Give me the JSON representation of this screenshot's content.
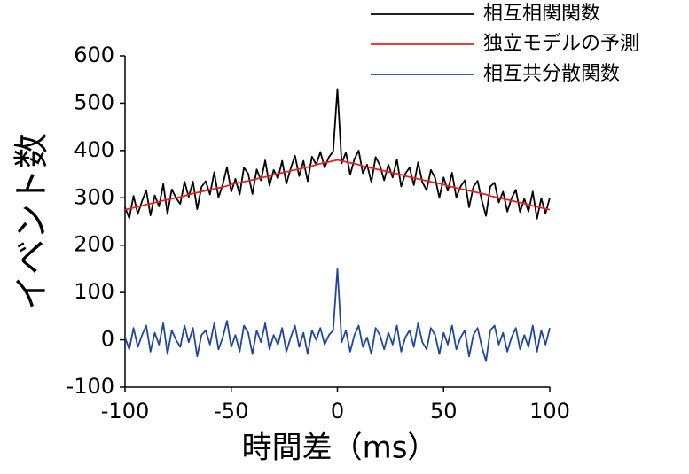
{
  "chart_data": {
    "type": "line",
    "xlabel": "時間差（ms）",
    "ylabel": "イベント数",
    "x": [
      -100,
      -98,
      -96,
      -94,
      -92,
      -90,
      -88,
      -86,
      -84,
      -82,
      -80,
      -78,
      -76,
      -74,
      -72,
      -70,
      -68,
      -66,
      -64,
      -62,
      -60,
      -58,
      -56,
      -54,
      -52,
      -50,
      -48,
      -46,
      -44,
      -42,
      -40,
      -38,
      -36,
      -34,
      -32,
      -30,
      -28,
      -26,
      -24,
      -22,
      -20,
      -18,
      -16,
      -14,
      -12,
      -10,
      -8,
      -6,
      -4,
      -2,
      0,
      2,
      4,
      6,
      8,
      10,
      12,
      14,
      16,
      18,
      20,
      22,
      24,
      26,
      28,
      30,
      32,
      34,
      36,
      38,
      40,
      42,
      44,
      46,
      48,
      50,
      52,
      54,
      56,
      58,
      60,
      62,
      64,
      66,
      68,
      70,
      72,
      74,
      76,
      78,
      80,
      82,
      84,
      86,
      88,
      90,
      92,
      94,
      96,
      98,
      100
    ],
    "series": [
      {
        "name": "相互相関関数",
        "color": "#000000",
        "values": [
          280,
          257,
          304,
          266,
          293,
          316,
          263,
          305,
          282,
          329,
          266,
          318,
          300,
          287,
          334,
          302,
          334,
          276,
          323,
          335,
          307,
          354,
          301,
          328,
          365,
          313,
          340,
          307,
          364,
          351,
          308,
          360,
          337,
          379,
          326,
          359,
          341,
          378,
          330,
          362,
          389,
          346,
          378,
          335,
          387,
          370,
          397,
          364,
          386,
          398,
          530,
          373,
          396,
          349,
          382,
          400,
          352,
          370,
          333,
          386,
          369,
          337,
          370,
          343,
          381,
          324,
          351,
          364,
          327,
          375,
          333,
          316,
          359,
          342,
          300,
          343,
          315,
          353,
          301,
          324,
          337,
          280,
          323,
          336,
          294,
          262,
          324,
          332,
          290,
          313,
          271,
          299,
          317,
          270,
          298,
          271,
          313,
          256,
          299,
          267,
          300
        ]
      },
      {
        "name": "独立モデルの予測",
        "color": "#e8221e",
        "values": [
          275,
          277,
          279,
          281,
          283,
          286,
          288,
          290,
          292,
          294,
          296,
          298,
          300,
          302,
          304,
          307,
          309,
          311,
          313,
          315,
          317,
          319,
          321,
          323,
          325,
          328,
          330,
          332,
          334,
          336,
          338,
          340,
          342,
          344,
          346,
          349,
          351,
          353,
          355,
          357,
          359,
          361,
          363,
          365,
          367,
          370,
          372,
          374,
          376,
          378,
          380,
          378,
          376,
          374,
          372,
          370,
          367,
          365,
          363,
          361,
          359,
          357,
          355,
          353,
          351,
          349,
          346,
          344,
          342,
          340,
          338,
          336,
          334,
          332,
          330,
          328,
          325,
          323,
          321,
          319,
          317,
          315,
          313,
          311,
          309,
          307,
          304,
          302,
          300,
          298,
          296,
          294,
          292,
          290,
          288,
          286,
          283,
          281,
          279,
          277,
          275
        ]
      },
      {
        "name": "相互共分散関数",
        "color": "#1f47a0",
        "values": [
          5,
          -20,
          25,
          -15,
          10,
          30,
          -25,
          15,
          -10,
          35,
          -30,
          20,
          0,
          -15,
          30,
          -5,
          25,
          -35,
          10,
          20,
          -10,
          35,
          -20,
          5,
          40,
          -15,
          10,
          -25,
          30,
          15,
          -30,
          20,
          -5,
          35,
          -20,
          10,
          -10,
          25,
          -25,
          5,
          30,
          -15,
          15,
          -30,
          20,
          0,
          25,
          -10,
          10,
          20,
          150,
          -5,
          20,
          -25,
          10,
          30,
          -15,
          5,
          -30,
          25,
          10,
          -20,
          15,
          -10,
          30,
          -25,
          5,
          20,
          -15,
          35,
          -5,
          -20,
          25,
          10,
          -30,
          15,
          -10,
          30,
          -20,
          5,
          20,
          -35,
          10,
          25,
          -15,
          -45,
          20,
          30,
          -10,
          15,
          -25,
          5,
          25,
          -20,
          10,
          -15,
          30,
          -25,
          20,
          -10,
          25
        ]
      }
    ],
    "xlim": [
      -100,
      100
    ],
    "xticks": [
      -100,
      -50,
      0,
      50,
      100
    ],
    "ylim": [
      -100,
      600
    ],
    "yticks": [
      -100,
      0,
      100,
      200,
      300,
      400,
      500,
      600
    ],
    "legend": "upper right"
  }
}
